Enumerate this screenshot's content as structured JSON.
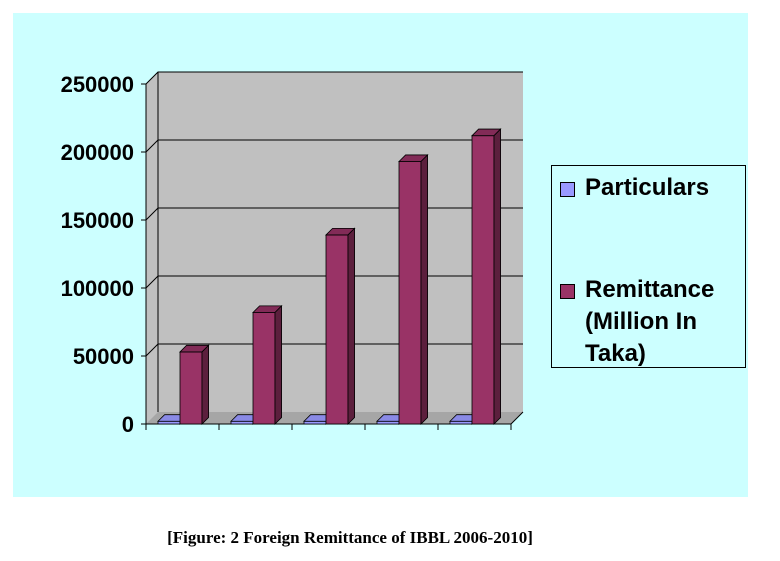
{
  "chart_data": {
    "type": "bar",
    "categories": [
      "",
      "",
      "",
      "",
      ""
    ],
    "series": [
      {
        "name": "Particulars",
        "values": [
          2006,
          2007,
          2008,
          2009,
          2010
        ],
        "color": "#9999ff"
      },
      {
        "name": "Remittance (Million In Taka)",
        "values": [
          53000,
          82000,
          139000,
          193000,
          212000
        ],
        "color": "#993366"
      }
    ],
    "ylim": [
      0,
      250000
    ],
    "yticks": [
      "250000",
      "200000",
      "150000",
      "100000",
      "50000",
      "0"
    ],
    "grid": true,
    "legend_position": "right",
    "background": "#ccffff",
    "plot_background": "#c0c0c0"
  },
  "legend": {
    "items": [
      {
        "label": "Particulars",
        "color": "#9999ff"
      },
      {
        "label": "Remittance (Million In Taka)",
        "color": "#993366"
      }
    ]
  },
  "caption": "[Figure: 2 Foreign Remittance of IBBL 2006-2010]"
}
